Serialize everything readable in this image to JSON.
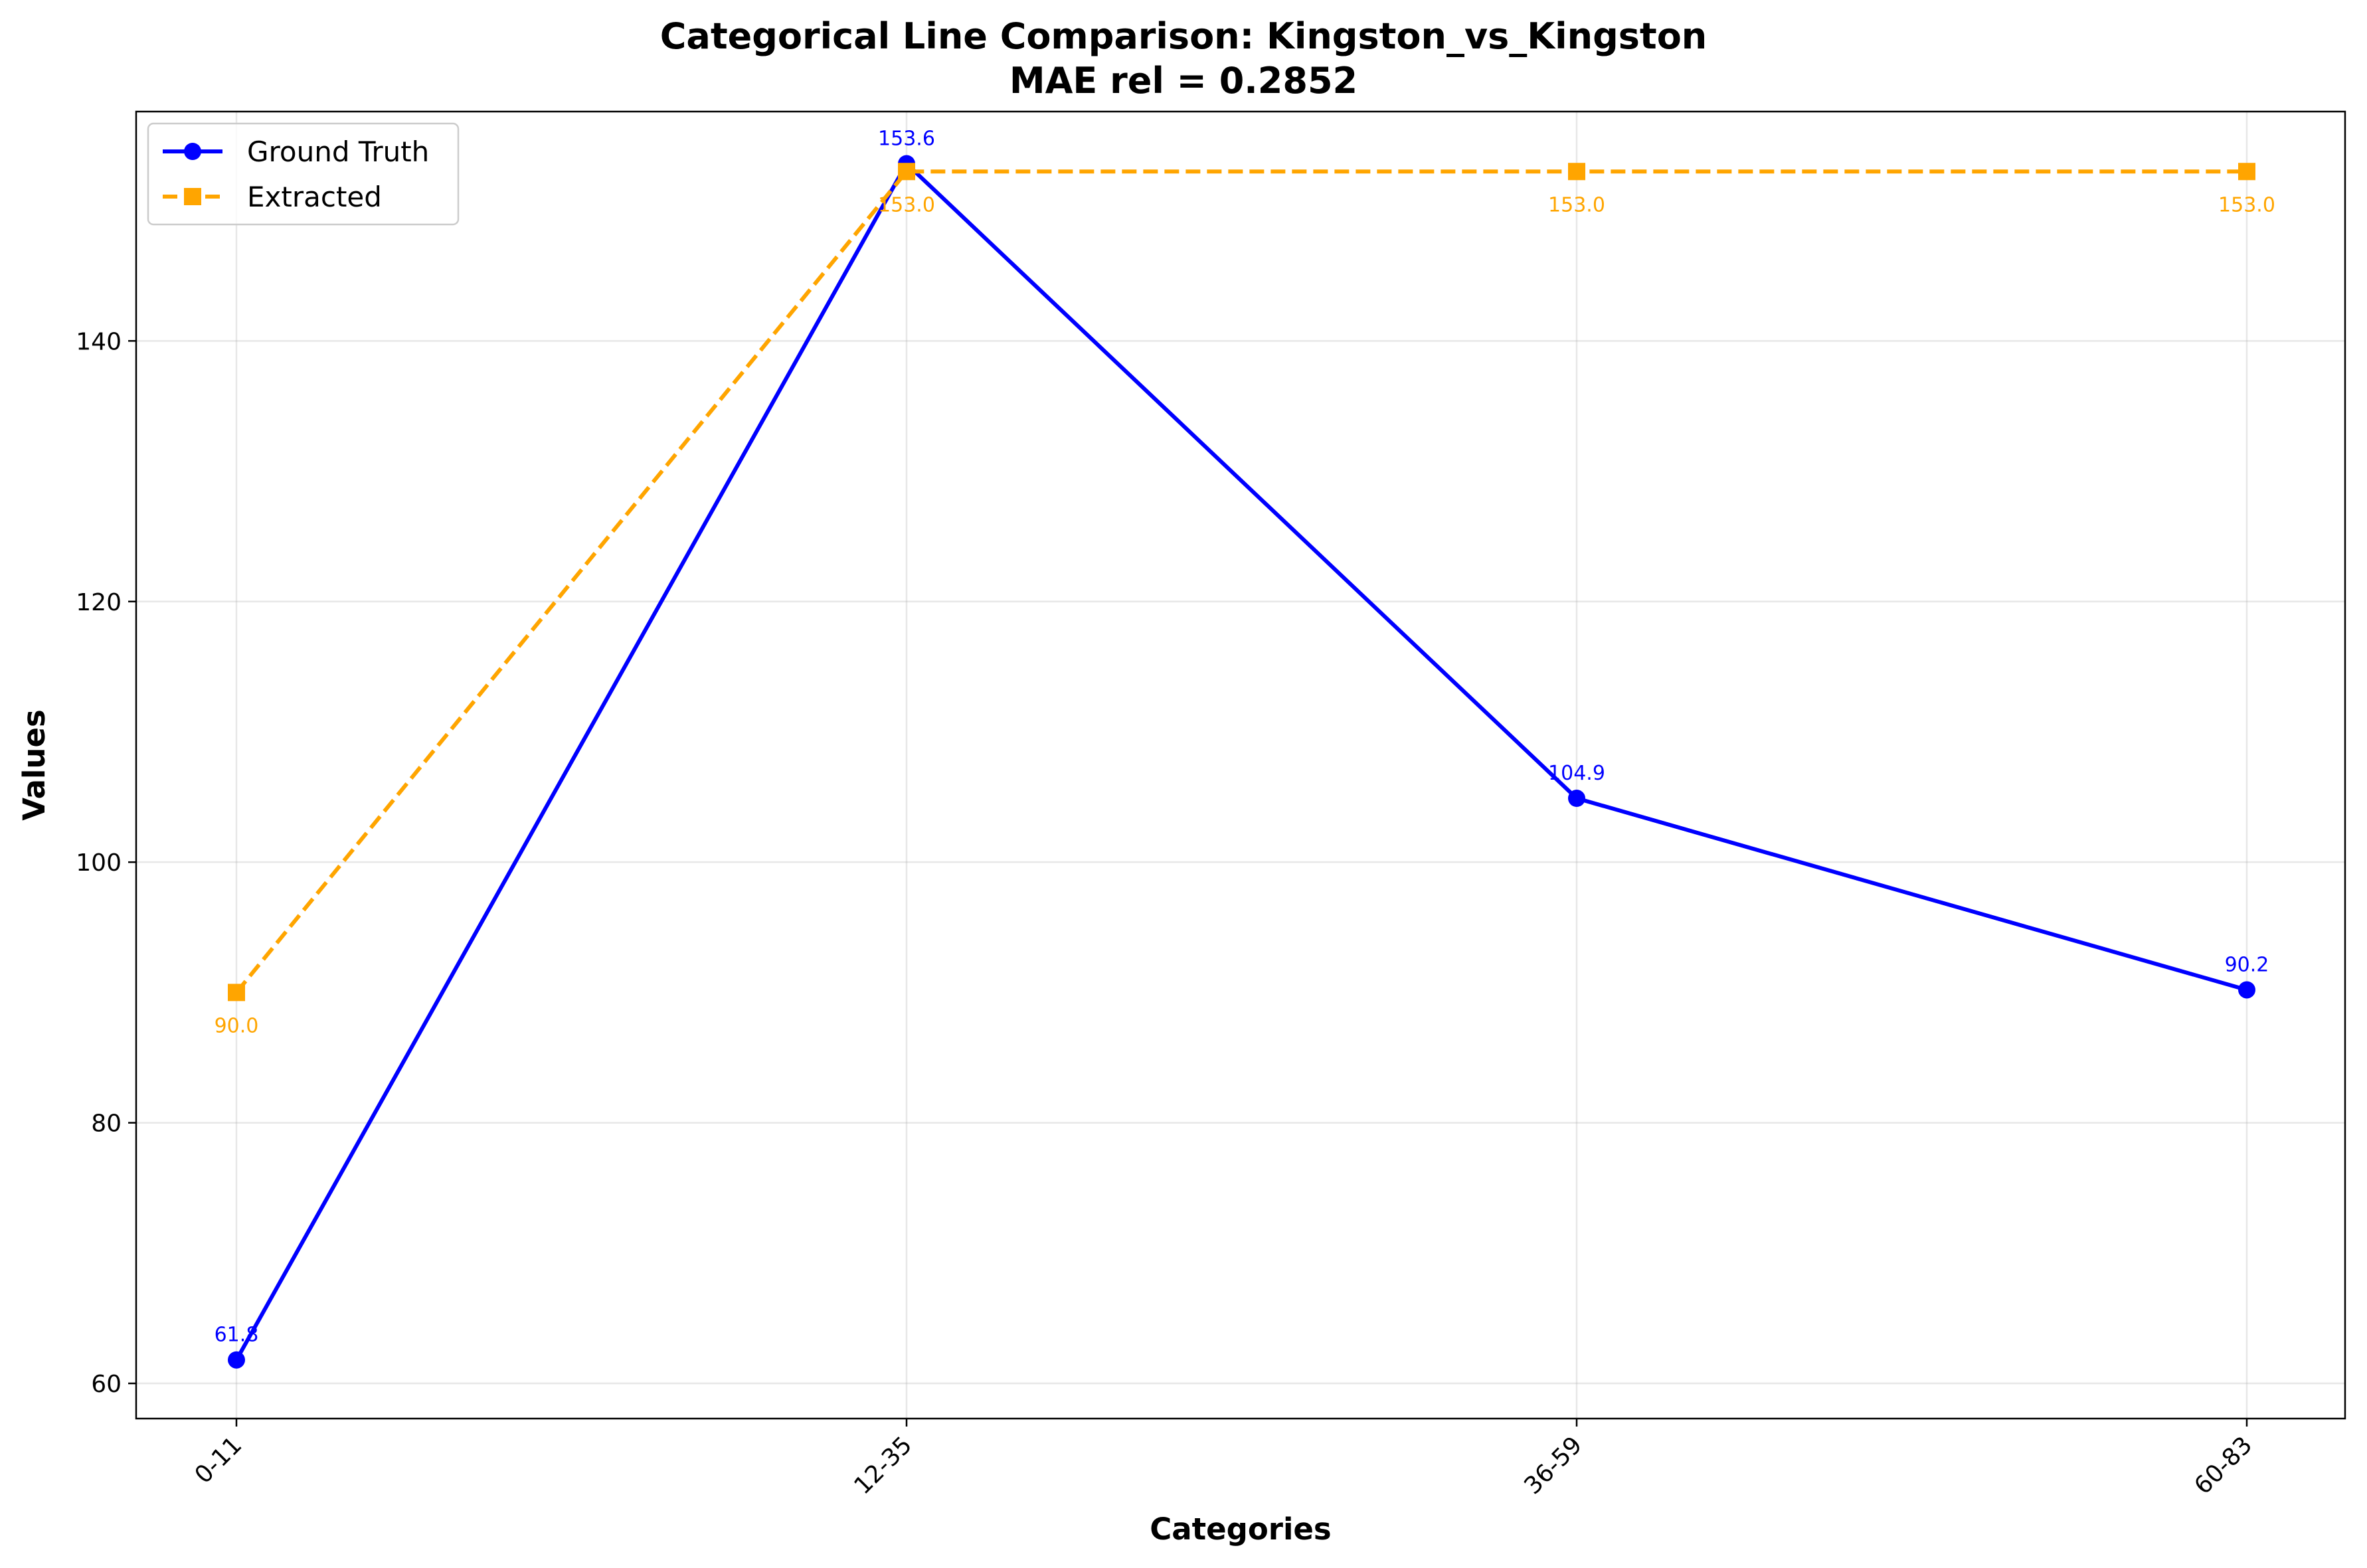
{
  "chart_data": {
    "type": "line",
    "title": "Categorical Line Comparison: Kingston_vs_Kingston",
    "subtitle": "MAE rel = 0.2852",
    "xlabel": "Categories",
    "ylabel": "Values",
    "categories": [
      "0-11",
      "12-35",
      "36-59",
      "60-83"
    ],
    "ylim": [
      57.3,
      157.6
    ],
    "yticks": [
      60,
      80,
      100,
      120,
      140
    ],
    "grid": true,
    "legend_position": "upper-left",
    "series": [
      {
        "name": "Ground Truth",
        "values": [
          61.8,
          153.6,
          104.9,
          90.2
        ],
        "labels": [
          "61.8",
          "153.6",
          "104.9",
          "90.2"
        ],
        "color": "#0000ff",
        "marker": "circle",
        "line_style": "solid"
      },
      {
        "name": "Extracted",
        "values": [
          90.0,
          153.0,
          153.0,
          153.0
        ],
        "labels": [
          "90.0",
          "153.0",
          "153.0",
          "153.0"
        ],
        "color": "#ffa500",
        "marker": "square",
        "line_style": "dashed"
      }
    ]
  }
}
